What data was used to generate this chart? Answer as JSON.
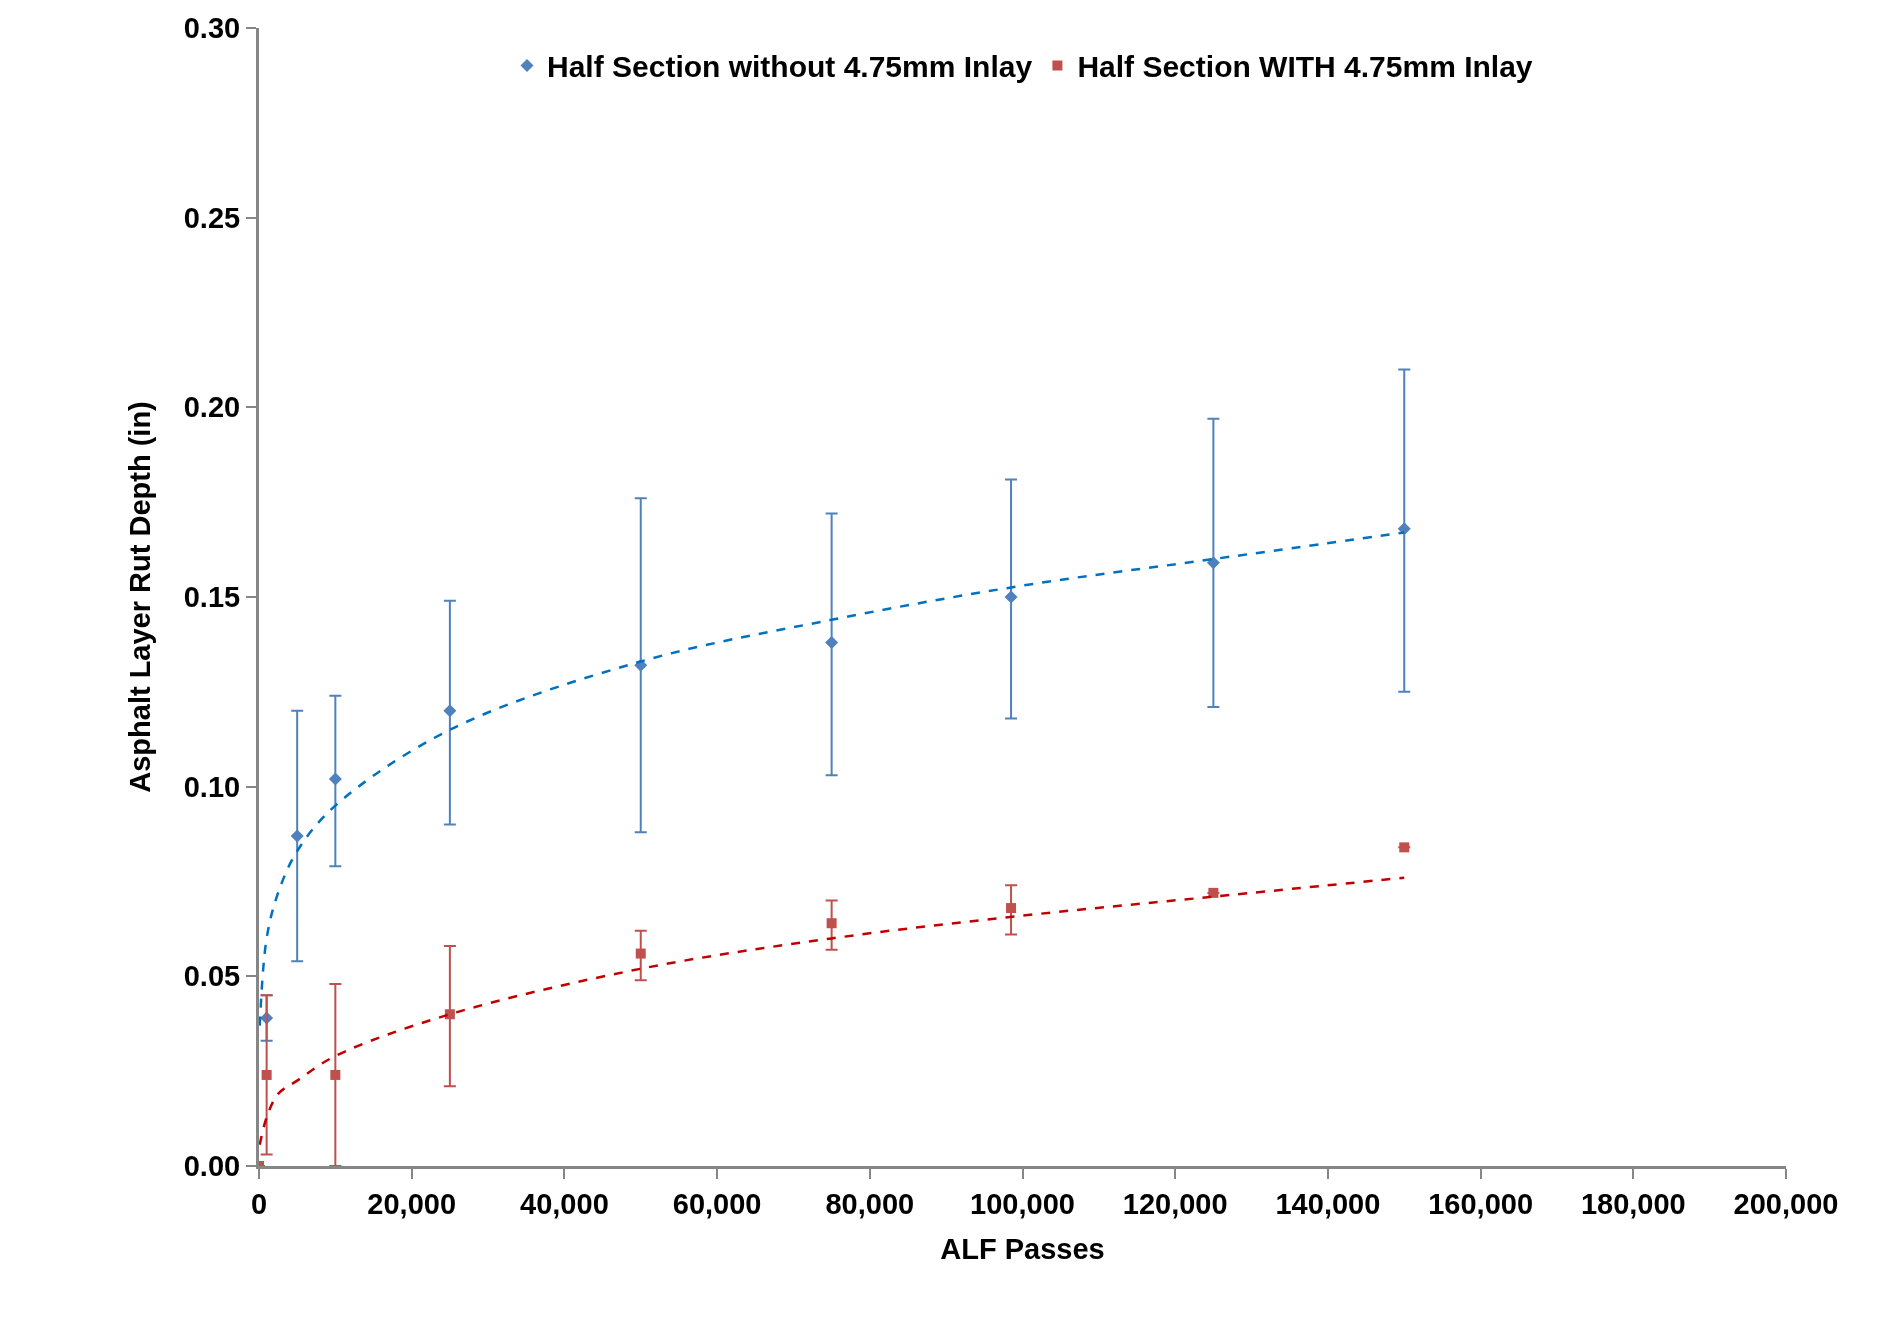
{
  "chart_data": {
    "type": "scatter",
    "xlabel": "ALF Passes",
    "ylabel": "Asphalt Layer Rut Depth (in)",
    "xlim": [
      0,
      200000
    ],
    "ylim": [
      0,
      0.3
    ],
    "xticks": [
      0,
      {
        "value": 20000,
        "label": "20,000"
      },
      {
        "value": 40000,
        "label": "40,000"
      },
      {
        "value": 60000,
        "label": "60,000"
      },
      {
        "value": 80000,
        "label": "80,000"
      },
      {
        "value": 100000,
        "label": "100,000"
      },
      {
        "value": 120000,
        "label": "120,000"
      },
      {
        "value": 140000,
        "label": "140,000"
      },
      {
        "value": 160000,
        "label": "160,000"
      },
      {
        "value": 180000,
        "label": "180,000"
      },
      {
        "value": 200000,
        "label": "200,000"
      }
    ],
    "yticks": [
      {
        "value": 0,
        "label": "0.00"
      },
      {
        "value": 0.05,
        "label": "0.05"
      },
      {
        "value": 0.1,
        "label": "0.10"
      },
      {
        "value": 0.15,
        "label": "0.15"
      },
      {
        "value": 0.2,
        "label": "0.20"
      },
      {
        "value": 0.25,
        "label": "0.25"
      },
      {
        "value": 0.3,
        "label": "0.30"
      }
    ],
    "legend": "top",
    "series": [
      {
        "name": "Half Section without 4.75mm Inlay",
        "color": "#4f81bd",
        "marker": "diamond",
        "x": [
          1000,
          5000,
          10000,
          25000,
          50000,
          75000,
          98500,
          125000,
          150000
        ],
        "values": [
          0.039,
          0.087,
          0.102,
          0.12,
          0.132,
          0.138,
          0.15,
          0.159,
          0.168
        ],
        "errors": [
          [
            0.033,
            0.045
          ],
          [
            0.054,
            0.12
          ],
          [
            0.079,
            0.124
          ],
          [
            0.09,
            0.149
          ],
          [
            0.088,
            0.176
          ],
          [
            0.103,
            0.172
          ],
          [
            0.118,
            0.181
          ],
          [
            0.121,
            0.197
          ],
          [
            0.125,
            0.21
          ]
        ]
      },
      {
        "name": "Half Section WITH 4.75mm Inlay",
        "color": "#c0504d",
        "marker": "square",
        "x": [
          0,
          1000,
          10000,
          25000,
          50000,
          75000,
          98500,
          125000,
          150000
        ],
        "values": [
          0,
          0.024,
          0.024,
          0.04,
          0.056,
          0.064,
          0.068,
          0.072,
          0.084
        ],
        "errors": [
          null,
          [
            0.003,
            0.045
          ],
          [
            0,
            0.048
          ],
          [
            0.021,
            0.058
          ],
          [
            0.049,
            0.062
          ],
          [
            0.057,
            0.07
          ],
          [
            0.061,
            0.074
          ],
          null,
          null
        ]
      },
      {
        "type": "line",
        "color": "#0070c0",
        "line_style": "dashed",
        "x": [
          100,
          1000,
          2500,
          5000,
          10000,
          25000,
          50000,
          75000,
          100000,
          125000,
          150000
        ],
        "values": [
          0.037,
          0.06,
          0.072,
          0.083,
          0.095,
          0.115,
          0.133,
          0.144,
          0.153,
          0.16,
          0.167
        ]
      },
      {
        "type": "line",
        "color": "#c00000",
        "line_style": "dashed",
        "x": [
          100,
          1000,
          2500,
          5000,
          10000,
          25000,
          50000,
          75000,
          100000,
          125000,
          150000
        ],
        "values": [
          0.0056,
          0.0128,
          0.019,
          0.0225,
          0.029,
          0.04,
          0.052,
          0.06,
          0.066,
          0.071,
          0.076
        ]
      }
    ]
  }
}
